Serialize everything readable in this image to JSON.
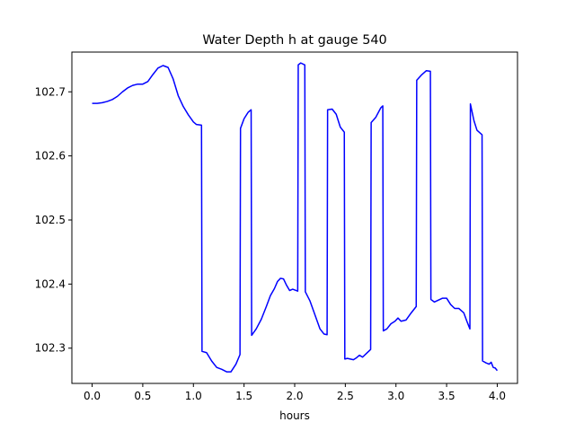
{
  "chart_data": {
    "type": "line",
    "title": "Water Depth h at gauge 540",
    "xlabel": "hours",
    "ylabel": "",
    "xlim": [
      -0.2,
      4.2
    ],
    "ylim": [
      102.245,
      102.762
    ],
    "xticks": [
      0.0,
      0.5,
      1.0,
      1.5,
      2.0,
      2.5,
      3.0,
      3.5,
      4.0
    ],
    "xtick_labels": [
      "0.0",
      "0.5",
      "1.0",
      "1.5",
      "2.0",
      "2.5",
      "3.0",
      "3.5",
      "4.0"
    ],
    "yticks": [
      102.3,
      102.4,
      102.5,
      102.6,
      102.7
    ],
    "ytick_labels": [
      "102.3",
      "102.4",
      "102.5",
      "102.6",
      "102.7"
    ],
    "grid": false,
    "series": [
      {
        "color": "#0000ff",
        "points": [
          [
            0.0,
            102.682
          ],
          [
            0.05,
            102.682
          ],
          [
            0.1,
            102.683
          ],
          [
            0.15,
            102.685
          ],
          [
            0.2,
            102.688
          ],
          [
            0.25,
            102.693
          ],
          [
            0.3,
            102.7
          ],
          [
            0.35,
            102.706
          ],
          [
            0.4,
            102.71
          ],
          [
            0.45,
            102.712
          ],
          [
            0.5,
            102.712
          ],
          [
            0.55,
            102.716
          ],
          [
            0.6,
            102.727
          ],
          [
            0.65,
            102.737
          ],
          [
            0.7,
            102.741
          ],
          [
            0.75,
            102.738
          ],
          [
            0.8,
            102.72
          ],
          [
            0.85,
            102.694
          ],
          [
            0.9,
            102.677
          ],
          [
            0.95,
            102.664
          ],
          [
            1.0,
            102.653
          ],
          [
            1.03,
            102.649
          ],
          [
            1.08,
            102.648
          ],
          [
            1.085,
            102.295
          ],
          [
            1.13,
            102.293
          ],
          [
            1.18,
            102.28
          ],
          [
            1.23,
            102.27
          ],
          [
            1.28,
            102.267
          ],
          [
            1.33,
            102.263
          ],
          [
            1.37,
            102.263
          ],
          [
            1.42,
            102.275
          ],
          [
            1.46,
            102.29
          ],
          [
            1.465,
            102.643
          ],
          [
            1.5,
            102.658
          ],
          [
            1.54,
            102.668
          ],
          [
            1.57,
            102.672
          ],
          [
            1.575,
            102.32
          ],
          [
            1.62,
            102.33
          ],
          [
            1.67,
            102.345
          ],
          [
            1.72,
            102.365
          ],
          [
            1.76,
            102.382
          ],
          [
            1.8,
            102.393
          ],
          [
            1.83,
            102.404
          ],
          [
            1.86,
            102.409
          ],
          [
            1.89,
            102.408
          ],
          [
            1.92,
            102.398
          ],
          [
            1.95,
            102.39
          ],
          [
            1.98,
            102.392
          ],
          [
            2.03,
            102.389
          ],
          [
            2.035,
            102.742
          ],
          [
            2.06,
            102.745
          ],
          [
            2.1,
            102.742
          ],
          [
            2.105,
            102.388
          ],
          [
            2.15,
            102.374
          ],
          [
            2.2,
            102.352
          ],
          [
            2.25,
            102.33
          ],
          [
            2.29,
            102.322
          ],
          [
            2.32,
            102.321
          ],
          [
            2.325,
            102.672
          ],
          [
            2.37,
            102.673
          ],
          [
            2.41,
            102.665
          ],
          [
            2.45,
            102.645
          ],
          [
            2.49,
            102.637
          ],
          [
            2.495,
            102.283
          ],
          [
            2.52,
            102.284
          ],
          [
            2.55,
            102.283
          ],
          [
            2.58,
            102.282
          ],
          [
            2.61,
            102.285
          ],
          [
            2.64,
            102.289
          ],
          [
            2.67,
            102.286
          ],
          [
            2.71,
            102.292
          ],
          [
            2.75,
            102.298
          ],
          [
            2.755,
            102.652
          ],
          [
            2.8,
            102.66
          ],
          [
            2.85,
            102.675
          ],
          [
            2.87,
            102.678
          ],
          [
            2.875,
            102.327
          ],
          [
            2.91,
            102.33
          ],
          [
            2.95,
            102.338
          ],
          [
            2.99,
            102.342
          ],
          [
            3.02,
            102.347
          ],
          [
            3.05,
            102.342
          ],
          [
            3.1,
            102.344
          ],
          [
            3.15,
            102.355
          ],
          [
            3.2,
            102.365
          ],
          [
            3.205,
            102.718
          ],
          [
            3.25,
            102.726
          ],
          [
            3.3,
            102.733
          ],
          [
            3.34,
            102.732
          ],
          [
            3.345,
            102.376
          ],
          [
            3.38,
            102.372
          ],
          [
            3.42,
            102.375
          ],
          [
            3.46,
            102.378
          ],
          [
            3.5,
            102.378
          ],
          [
            3.54,
            102.368
          ],
          [
            3.58,
            102.362
          ],
          [
            3.62,
            102.362
          ],
          [
            3.67,
            102.355
          ],
          [
            3.7,
            102.342
          ],
          [
            3.73,
            102.33
          ],
          [
            3.735,
            102.681
          ],
          [
            3.77,
            102.655
          ],
          [
            3.8,
            102.64
          ],
          [
            3.85,
            102.633
          ],
          [
            3.855,
            102.28
          ],
          [
            3.89,
            102.277
          ],
          [
            3.92,
            102.275
          ],
          [
            3.94,
            102.278
          ],
          [
            3.96,
            102.27
          ],
          [
            3.98,
            102.269
          ],
          [
            4.0,
            102.265
          ]
        ]
      }
    ]
  }
}
